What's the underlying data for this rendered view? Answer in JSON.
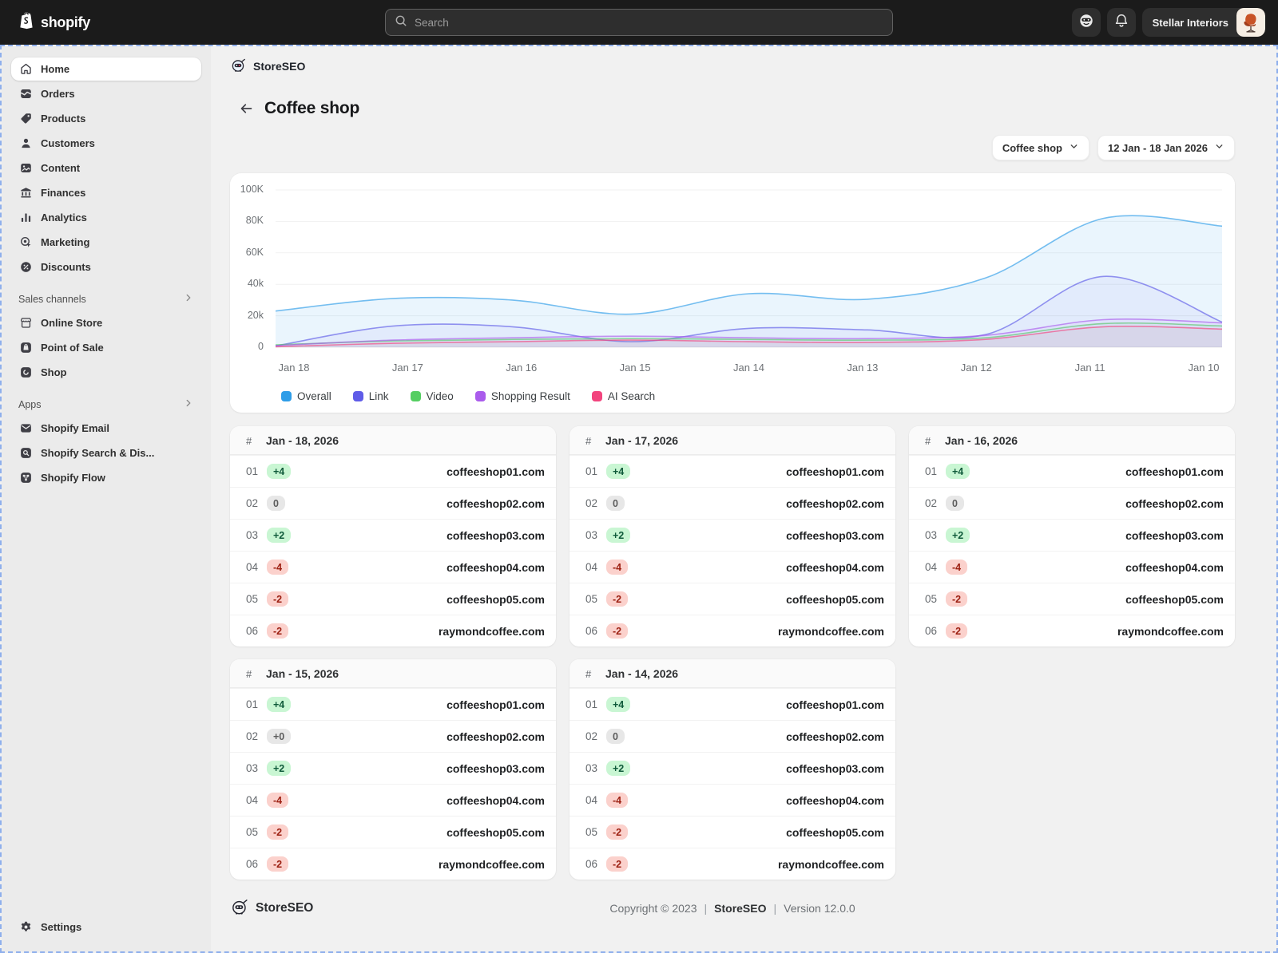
{
  "topbar": {
    "brand_label": "shopify",
    "search_placeholder": "Search",
    "store_name": "Stellar Interiors"
  },
  "sidebar": {
    "items": [
      {
        "label": "Home",
        "icon": "home",
        "active": true
      },
      {
        "label": "Orders",
        "icon": "orders"
      },
      {
        "label": "Products",
        "icon": "products"
      },
      {
        "label": "Customers",
        "icon": "customers"
      },
      {
        "label": "Content",
        "icon": "content"
      },
      {
        "label": "Finances",
        "icon": "finances"
      },
      {
        "label": "Analytics",
        "icon": "analytics"
      },
      {
        "label": "Marketing",
        "icon": "marketing"
      },
      {
        "label": "Discounts",
        "icon": "discounts"
      }
    ],
    "sections": [
      {
        "label": "Sales channels",
        "items": [
          {
            "label": "Online Store",
            "icon": "online-store"
          },
          {
            "label": "Point of Sale",
            "icon": "point-of-sale"
          },
          {
            "label": "Shop",
            "icon": "shop"
          }
        ]
      },
      {
        "label": "Apps",
        "items": [
          {
            "label": "Shopify Email",
            "icon": "email"
          },
          {
            "label": "Shopify Search & Dis...",
            "icon": "search-app"
          },
          {
            "label": "Shopify Flow",
            "icon": "flow"
          }
        ]
      }
    ],
    "settings_label": "Settings"
  },
  "main": {
    "app_name": "StoreSEO",
    "page_title": "Coffee shop",
    "filters": {
      "group_label": "Coffee shop",
      "date_range_label": "12 Jan - 18 Jan 2026"
    }
  },
  "chart_data": {
    "type": "area",
    "x": [
      "Jan 18",
      "Jan 17",
      "Jan 16",
      "Jan 15",
      "Jan 14",
      "Jan 13",
      "Jan 12",
      "Jan 11",
      "Jan 10"
    ],
    "series": [
      {
        "name": "Overall",
        "color": "#2E9DE8",
        "values": [
          23000,
          31000,
          30000,
          21000,
          34000,
          30500,
          44000,
          82000,
          77000
        ]
      },
      {
        "name": "Link",
        "color": "#5F5CE8",
        "values": [
          800,
          13500,
          13000,
          3500,
          12000,
          11000,
          8000,
          45000,
          16000
        ]
      },
      {
        "name": "Video",
        "color": "#55CE62",
        "values": [
          1500,
          4000,
          5000,
          5500,
          5000,
          4500,
          6000,
          15000,
          13500
        ]
      },
      {
        "name": "Shopping Result",
        "color": "#AA5CEC",
        "values": [
          1000,
          4500,
          6000,
          7000,
          6000,
          5500,
          7500,
          17500,
          15500
        ]
      },
      {
        "name": "AI Search",
        "color": "#F2447E",
        "values": [
          300,
          2500,
          3500,
          4500,
          3500,
          3000,
          5000,
          13000,
          11500
        ]
      }
    ],
    "ylim": [
      0,
      100000
    ],
    "yticks": [
      {
        "label": "100K",
        "value": 100000
      },
      {
        "label": "80K",
        "value": 80000
      },
      {
        "label": "60K",
        "value": 60000
      },
      {
        "label": "40k",
        "value": 40000
      },
      {
        "label": "20k",
        "value": 20000
      },
      {
        "label": "0",
        "value": 0
      }
    ],
    "grid": "horizontal",
    "legend_position": "bottom-left"
  },
  "rank_tables": {
    "rank_header": "#",
    "tables": [
      {
        "date": "Jan - 18, 2026",
        "rows": [
          {
            "rank": "01",
            "change": "+4",
            "domain": "coffeeshop01.com"
          },
          {
            "rank": "02",
            "change": "0",
            "domain": "coffeeshop02.com"
          },
          {
            "rank": "03",
            "change": "+2",
            "domain": "coffeeshop03.com"
          },
          {
            "rank": "04",
            "change": "-4",
            "domain": "coffeeshop04.com"
          },
          {
            "rank": "05",
            "change": "-2",
            "domain": "coffeeshop05.com"
          },
          {
            "rank": "06",
            "change": "-2",
            "domain": "raymondcoffee.com"
          }
        ]
      },
      {
        "date": "Jan - 17, 2026",
        "rows": [
          {
            "rank": "01",
            "change": "+4",
            "domain": "coffeeshop01.com"
          },
          {
            "rank": "02",
            "change": "0",
            "domain": "coffeeshop02.com"
          },
          {
            "rank": "03",
            "change": "+2",
            "domain": "coffeeshop03.com"
          },
          {
            "rank": "04",
            "change": "-4",
            "domain": "coffeeshop04.com"
          },
          {
            "rank": "05",
            "change": "-2",
            "domain": "coffeeshop05.com"
          },
          {
            "rank": "06",
            "change": "-2",
            "domain": "raymondcoffee.com"
          }
        ]
      },
      {
        "date": "Jan - 16, 2026",
        "rows": [
          {
            "rank": "01",
            "change": "+4",
            "domain": "coffeeshop01.com"
          },
          {
            "rank": "02",
            "change": "0",
            "domain": "coffeeshop02.com"
          },
          {
            "rank": "03",
            "change": "+2",
            "domain": "coffeeshop03.com"
          },
          {
            "rank": "04",
            "change": "-4",
            "domain": "coffeeshop04.com"
          },
          {
            "rank": "05",
            "change": "-2",
            "domain": "coffeeshop05.com"
          },
          {
            "rank": "06",
            "change": "-2",
            "domain": "raymondcoffee.com"
          }
        ]
      },
      {
        "date": "Jan - 15, 2026",
        "rows": [
          {
            "rank": "01",
            "change": "+4",
            "domain": "coffeeshop01.com"
          },
          {
            "rank": "02",
            "change": "+0",
            "domain": "coffeeshop02.com"
          },
          {
            "rank": "03",
            "change": "+2",
            "domain": "coffeeshop03.com"
          },
          {
            "rank": "04",
            "change": "-4",
            "domain": "coffeeshop04.com"
          },
          {
            "rank": "05",
            "change": "-2",
            "domain": "coffeeshop05.com"
          },
          {
            "rank": "06",
            "change": "-2",
            "domain": "raymondcoffee.com"
          }
        ]
      },
      {
        "date": "Jan - 14, 2026",
        "rows": [
          {
            "rank": "01",
            "change": "+4",
            "domain": "coffeeshop01.com"
          },
          {
            "rank": "02",
            "change": "0",
            "domain": "coffeeshop02.com"
          },
          {
            "rank": "03",
            "change": "+2",
            "domain": "coffeeshop03.com"
          },
          {
            "rank": "04",
            "change": "-4",
            "domain": "coffeeshop04.com"
          },
          {
            "rank": "05",
            "change": "-2",
            "domain": "coffeeshop05.com"
          },
          {
            "rank": "06",
            "change": "-2",
            "domain": "raymondcoffee.com"
          }
        ]
      }
    ]
  },
  "footer": {
    "logo_text": "StoreSEO",
    "copyright": {
      "prefix": "Copyright © 2023",
      "separator": "|",
      "brand": "StoreSEO",
      "version": "Version 12.0.0"
    }
  },
  "colors": {
    "topbar_bg": "#1b1b1b",
    "sidebar_bg": "#ebebeb",
    "content_bg": "#f1f1f1",
    "badge_up_bg": "#c9f6d3",
    "badge_up_text": "#0f5a3a",
    "badge_down_bg": "#fbd1cc",
    "badge_down_text": "#9c1f11",
    "badge_zero_bg": "#e7e7e7",
    "badge_zero_text": "#5c5c5c"
  }
}
